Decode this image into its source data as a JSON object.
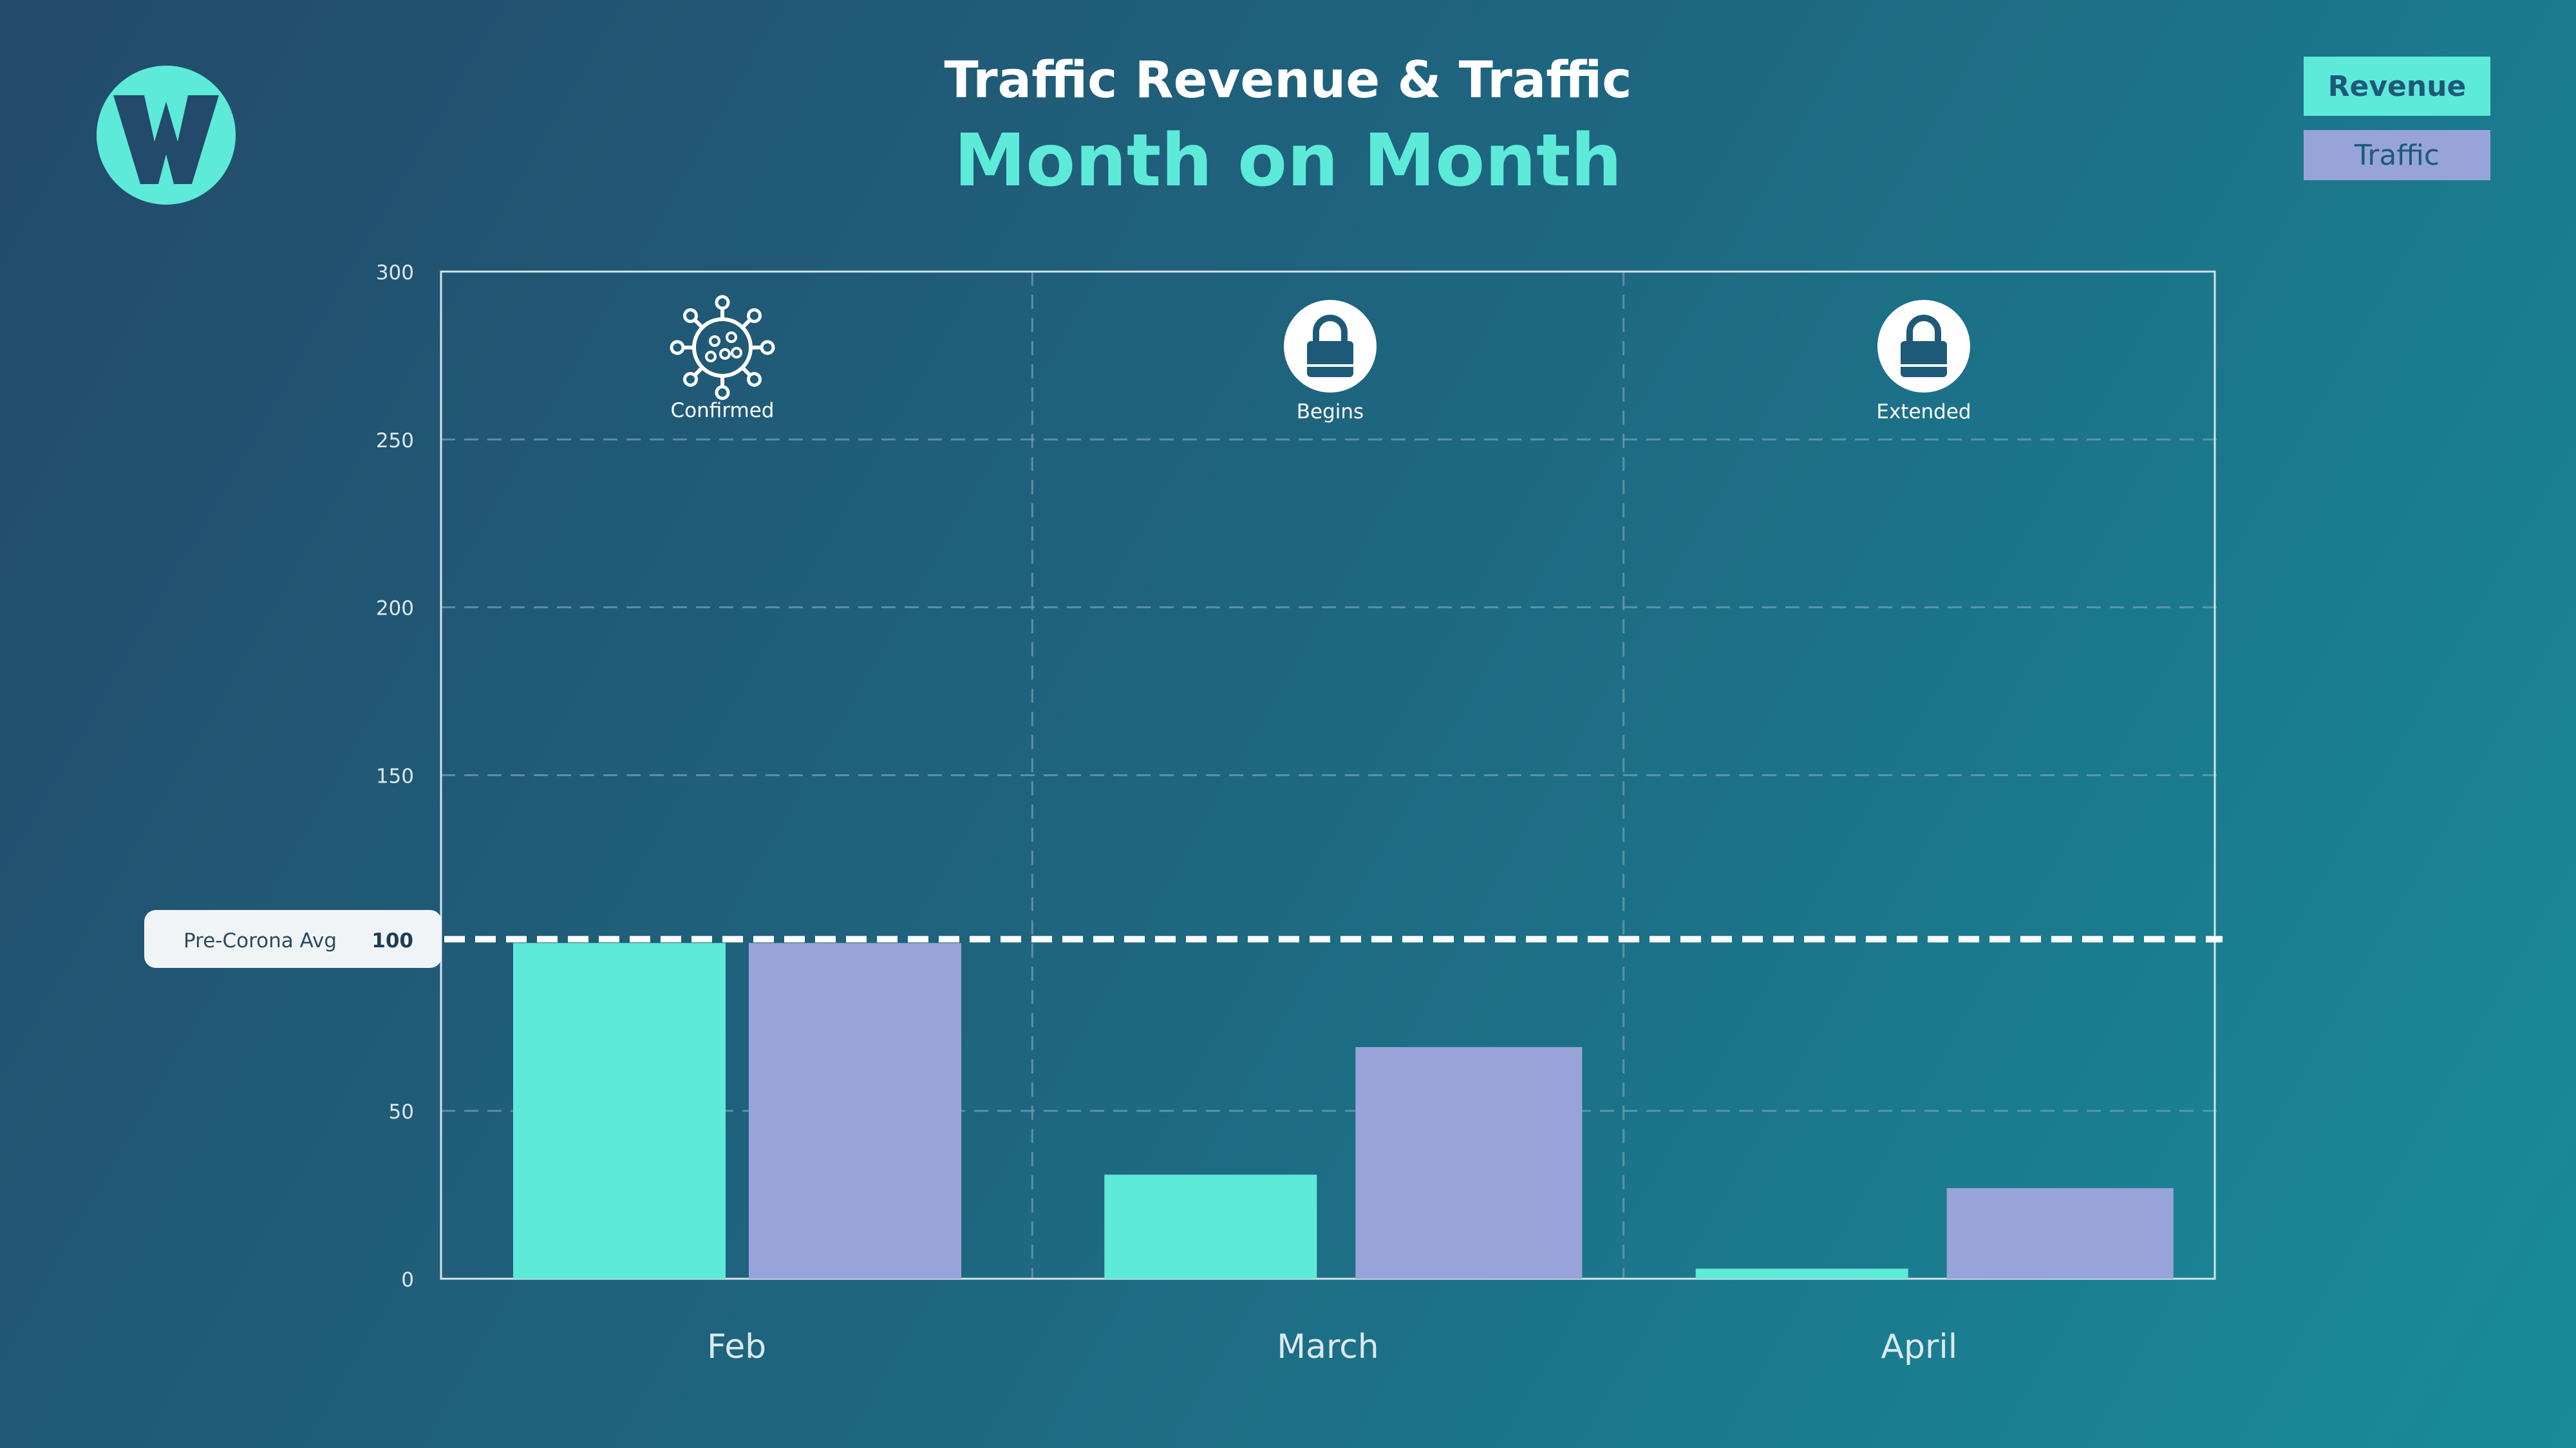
{
  "header": {
    "title": "Traffic Revenue & Traffic",
    "subtitle": "Month on Month"
  },
  "legend": {
    "revenue_label": "Revenue",
    "traffic_label": "Traffic"
  },
  "logo": {
    "icon": "w-logo-icon",
    "color": "#5eead9"
  },
  "colors": {
    "revenue": "#5eead9",
    "traffic": "#98a4d9",
    "grid": "#6f9fb2",
    "axis_text": "#dde9ee"
  },
  "chart_data": {
    "type": "bar",
    "categories": [
      "Feb",
      "March",
      "April"
    ],
    "series": [
      {
        "name": "Revenue",
        "values": [
          100,
          31,
          3
        ]
      },
      {
        "name": "Traffic",
        "values": [
          100,
          69,
          27
        ]
      }
    ],
    "ylim": [
      0,
      300
    ],
    "yticks": [
      0,
      50,
      150,
      200,
      250,
      300
    ],
    "grid": true,
    "legend_position": "top-right",
    "reference_line": {
      "label": "Pre-Corona Avg",
      "value": 100,
      "value_label": "100"
    },
    "annotations": [
      {
        "category": "Feb",
        "icon": "virus-icon",
        "label": "Confirmed"
      },
      {
        "category": "March",
        "icon": "lock-icon",
        "label": "Begins"
      },
      {
        "category": "April",
        "icon": "lock-icon",
        "label": "Extended"
      }
    ]
  }
}
